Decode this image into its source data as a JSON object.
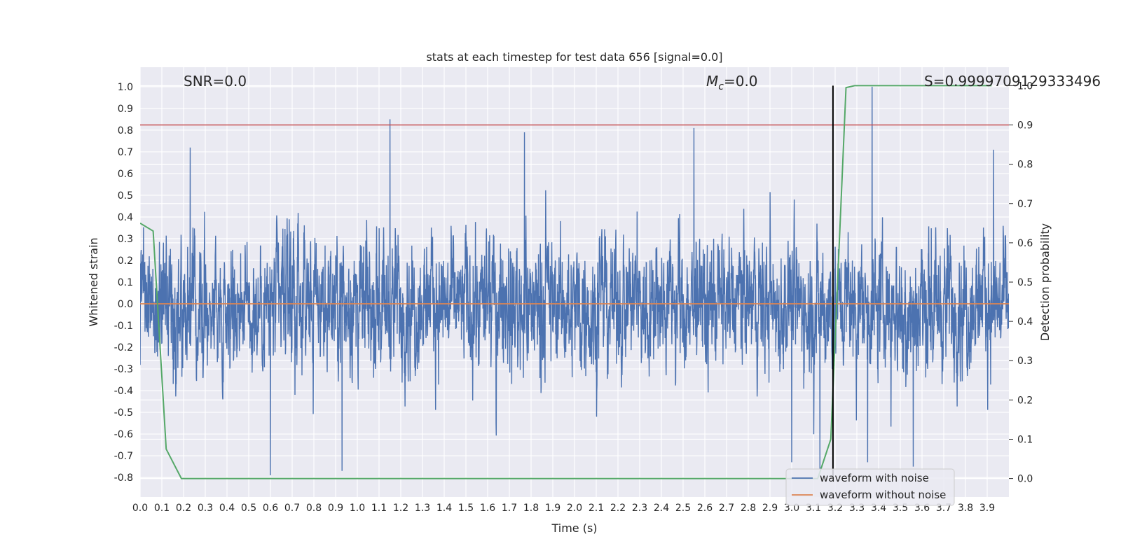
{
  "chart_data": {
    "type": "line",
    "title": "stats at each timestep for test data 656 [signal=0.0]",
    "xlabel": "Time (s)",
    "ylabel": "Whitened strain",
    "y2label": "Detection probability",
    "xlim": [
      0.0,
      4.0
    ],
    "ylim": [
      -0.89,
      1.09
    ],
    "y2lim": [
      -0.047,
      1.047
    ],
    "xticks": [
      "0.0",
      "0.1",
      "0.2",
      "0.3",
      "0.4",
      "0.5",
      "0.6",
      "0.7",
      "0.8",
      "0.9",
      "1.0",
      "1.1",
      "1.2",
      "1.3",
      "1.4",
      "1.5",
      "1.6",
      "1.7",
      "1.8",
      "1.9",
      "2.0",
      "2.1",
      "2.2",
      "2.3",
      "2.4",
      "2.5",
      "2.6",
      "2.7",
      "2.8",
      "2.9",
      "3.0",
      "3.1",
      "3.2",
      "3.3",
      "3.4",
      "3.5",
      "3.6",
      "3.7",
      "3.8",
      "3.9"
    ],
    "yticks": [
      "1.0",
      "0.9",
      "0.8",
      "0.7",
      "0.6",
      "0.5",
      "0.4",
      "0.3",
      "0.2",
      "0.1",
      "0.0",
      "-0.1",
      "-0.2",
      "-0.3",
      "-0.4",
      "-0.5",
      "-0.6",
      "-0.7",
      "-0.8"
    ],
    "y2ticks": [
      "1.0",
      "0.9",
      "0.8",
      "0.7",
      "0.6",
      "0.5",
      "0.4",
      "0.3",
      "0.2",
      "0.1",
      "0.0"
    ],
    "grid": true,
    "legend_position": "bottom-right",
    "annotations": {
      "snr": "SNR=0.0",
      "mc_prefix": "M",
      "mc_sub": "c",
      "mc_value": "=0.0",
      "s": "S=0.9999709129333496"
    },
    "colors": {
      "noisy": "#4c72b0",
      "clean": "#dd8452",
      "probability": "#55a868",
      "threshold": "#c44e52",
      "marker": "#000000",
      "background": "#eaeaf2",
      "grid": "#ffffff"
    },
    "threshold_probability": 0.9,
    "marker_time": 3.19,
    "series": [
      {
        "name": "waveform with noise",
        "description": "noisy whitened strain, amplitude mostly within ±0.4 with spikes",
        "sample_rate": 1024,
        "spikes": [
          {
            "x": 0.23,
            "y": 0.72
          },
          {
            "x": 1.15,
            "y": 0.85
          },
          {
            "x": 1.77,
            "y": 0.79
          },
          {
            "x": 2.55,
            "y": 0.81
          },
          {
            "x": 3.37,
            "y": 1.0
          },
          {
            "x": 3.93,
            "y": 0.71
          },
          {
            "x": 0.6,
            "y": -0.79
          },
          {
            "x": 0.93,
            "y": -0.77
          },
          {
            "x": 3.0,
            "y": -0.73
          },
          {
            "x": 3.13,
            "y": -0.76
          },
          {
            "x": 3.35,
            "y": -0.73
          },
          {
            "x": 3.56,
            "y": -0.75
          }
        ]
      },
      {
        "name": "waveform without noise",
        "x": [
          0.0,
          4.0
        ],
        "y": [
          0.0,
          0.0
        ]
      },
      {
        "name": "detection probability",
        "axis": "right",
        "x": [
          0.0,
          0.06,
          0.12,
          0.19,
          3.12,
          3.18,
          3.25,
          3.29,
          3.92
        ],
        "y": [
          0.65,
          0.63,
          0.075,
          0.0,
          0.0,
          0.1,
          0.995,
          1.0,
          1.0
        ]
      }
    ]
  }
}
